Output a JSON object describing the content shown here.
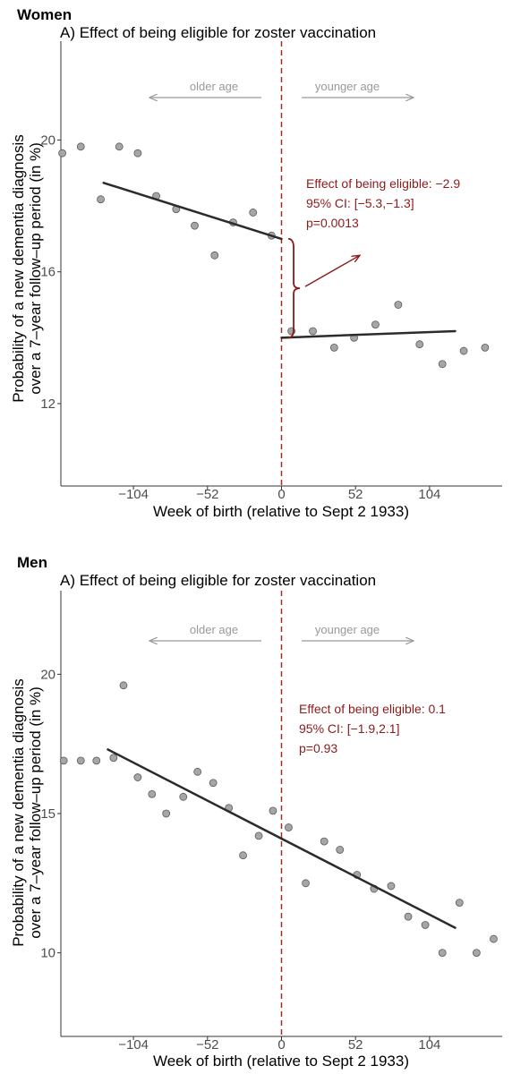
{
  "colors": {
    "points_fill": "#a6a6a6",
    "points_stroke": "#5a5a5a",
    "fit_line": "#2b2b2b",
    "cutoff_line": "#a52a2a",
    "annotation": "#8b1a1a",
    "age_arrows": "#999999"
  },
  "chart_data": [
    {
      "panel": "Women",
      "type": "scatter",
      "title": "A) Effect of being eligible for zoster vaccination",
      "xlabel": "Week of birth (relative to Sept 2 1933)",
      "ylabel_lines": [
        "Probability of a new dementia diagnosis",
        "over a 7–year follow–up period (in %)"
      ],
      "xlim": [
        -155,
        155
      ],
      "ylim": [
        9.5,
        23.0
      ],
      "xticks": [
        -104,
        -52,
        0,
        52,
        104
      ],
      "xtick_labels": [
        "−104",
        "−52",
        "0",
        "52",
        "104"
      ],
      "yticks": [
        12,
        16,
        20
      ],
      "ytick_labels": [
        "12",
        "16",
        "20"
      ],
      "cutoff": 0,
      "age_arrows": {
        "left_label": "older age",
        "right_label": "younger age"
      },
      "points": [
        {
          "x": -154,
          "y": 19.6
        },
        {
          "x": -141,
          "y": 19.8
        },
        {
          "x": -127,
          "y": 18.2
        },
        {
          "x": -114,
          "y": 19.8
        },
        {
          "x": -101,
          "y": 19.6
        },
        {
          "x": -88,
          "y": 18.3
        },
        {
          "x": -74,
          "y": 17.9
        },
        {
          "x": -61,
          "y": 17.4
        },
        {
          "x": -47,
          "y": 16.5
        },
        {
          "x": -34,
          "y": 17.5
        },
        {
          "x": -20,
          "y": 17.8
        },
        {
          "x": -7,
          "y": 17.1
        },
        {
          "x": 7,
          "y": 14.2
        },
        {
          "x": 22,
          "y": 14.2
        },
        {
          "x": 37,
          "y": 13.7
        },
        {
          "x": 51,
          "y": 14.0
        },
        {
          "x": 66,
          "y": 14.4
        },
        {
          "x": 82,
          "y": 15.0
        },
        {
          "x": 97,
          "y": 13.8
        },
        {
          "x": 113,
          "y": 13.2
        },
        {
          "x": 128,
          "y": 13.6
        },
        {
          "x": 143,
          "y": 13.7
        }
      ],
      "fit_segments": [
        {
          "x": [
            -125,
            0
          ],
          "y": [
            18.7,
            17.0
          ]
        },
        {
          "x": 0,
          "x_end": 122,
          "y": [
            14.0,
            14.2
          ]
        }
      ],
      "bracket": {
        "x": 6,
        "y_top": 17.0,
        "y_bottom": 14.0,
        "arrow_to": {
          "x": 55,
          "y": 16.5
        }
      },
      "annotation_lines": [
        "Effect of being eligible: −2.9",
        "95% CI: [−5.3,−1.3]",
        "p=0.0013"
      ]
    },
    {
      "panel": "Men",
      "type": "scatter",
      "title": "A) Effect of being eligible for zoster vaccination",
      "xlabel": "Week of birth (relative to Sept 2 1933)",
      "ylabel_lines": [
        "Probability of a new dementia diagnosis",
        "over a 7–year follow–up period (in %)"
      ],
      "xlim": [
        -155,
        155
      ],
      "ylim": [
        7.0,
        23.0
      ],
      "xticks": [
        -104,
        -52,
        0,
        52,
        104
      ],
      "xtick_labels": [
        "−104",
        "−52",
        "0",
        "52",
        "104"
      ],
      "yticks": [
        10,
        15,
        20
      ],
      "ytick_labels": [
        "10",
        "15",
        "20"
      ],
      "cutoff": 0,
      "age_arrows": {
        "left_label": "older age",
        "right_label": "younger age"
      },
      "points": [
        {
          "x": -153,
          "y": 16.9
        },
        {
          "x": -141,
          "y": 16.9
        },
        {
          "x": -130,
          "y": 16.9
        },
        {
          "x": -118,
          "y": 17.0
        },
        {
          "x": -111,
          "y": 19.6
        },
        {
          "x": -101,
          "y": 16.3
        },
        {
          "x": -91,
          "y": 15.7
        },
        {
          "x": -81,
          "y": 15.0
        },
        {
          "x": -69,
          "y": 15.6
        },
        {
          "x": -59,
          "y": 16.5
        },
        {
          "x": -48,
          "y": 16.1
        },
        {
          "x": -37,
          "y": 15.2
        },
        {
          "x": -27,
          "y": 13.5
        },
        {
          "x": -16,
          "y": 14.2
        },
        {
          "x": -6,
          "y": 15.1
        },
        {
          "x": 5,
          "y": 14.5
        },
        {
          "x": 17,
          "y": 12.5
        },
        {
          "x": 30,
          "y": 14.0
        },
        {
          "x": 41,
          "y": 13.7
        },
        {
          "x": 53,
          "y": 12.8
        },
        {
          "x": 65,
          "y": 12.3
        },
        {
          "x": 77,
          "y": 12.4
        },
        {
          "x": 89,
          "y": 11.3
        },
        {
          "x": 101,
          "y": 11.0
        },
        {
          "x": 113,
          "y": 10.0
        },
        {
          "x": 125,
          "y": 11.8
        },
        {
          "x": 137,
          "y": 10.0
        },
        {
          "x": 149,
          "y": 10.5
        }
      ],
      "fit_segments": [
        {
          "x": [
            -122,
            122
          ],
          "y": [
            17.3,
            10.9
          ]
        }
      ],
      "annotation_lines": [
        "Effect of being eligible: 0.1",
        "95% CI: [−1.9,2.1]",
        "p=0.93"
      ]
    }
  ]
}
